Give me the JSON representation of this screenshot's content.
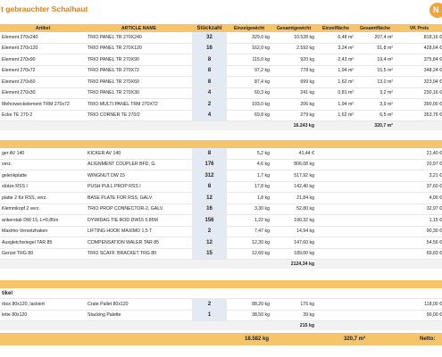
{
  "title": "t gebrauchter Schalhaut",
  "logo_text": "N",
  "header": {
    "article": "Artikel",
    "name": "ARTICLE NAME",
    "qty": "Stückzahl",
    "weight": "Einzelgewicht",
    "total_weight": "Gesamtgewicht",
    "area": "Einzelfläche",
    "total_area": "Gesamtfläche",
    "price": "VK Preis"
  },
  "section1": {
    "rows": [
      {
        "article": "Element 270x240",
        "name": "TRIO PANEL TR 270X240",
        "qty": "32",
        "weight": "329,0 kg",
        "total_weight": "10.528 kg",
        "area": "6,48 m²",
        "total_area": "207,4 m²",
        "price": "818,16 €"
      },
      {
        "article": "Element 270x120",
        "name": "TRIO PANEL TR 270X120",
        "qty": "16",
        "weight": "162,0 kg",
        "total_weight": "2.592 kg",
        "area": "3,24 m²",
        "total_area": "51,8 m²",
        "price": "428,64 €"
      },
      {
        "article": "Element 270x90",
        "name": "TRIO PANEL TR 270X90",
        "qty": "8",
        "weight": "115,0 kg",
        "total_weight": "920 kg",
        "area": "2,43 m²",
        "total_area": "19,4 m²",
        "price": "375,84 €"
      },
      {
        "article": "Element 270x72",
        "name": "TRIO PANEL TR 270X72",
        "qty": "8",
        "weight": "97,2 kg",
        "total_weight": "778 kg",
        "area": "1,94 m²",
        "total_area": "15,5 m²",
        "price": "348,24 €"
      },
      {
        "article": "Element 270x60",
        "name": "TRIO PANEL TR 270X60",
        "qty": "8",
        "weight": "87,4 kg",
        "total_weight": "699 kg",
        "area": "1,62 m²",
        "total_area": "13,0 m²",
        "price": "323,04 €"
      },
      {
        "article": "Element 270x30",
        "name": "TRIO PANEL TR 270X30",
        "qty": "4",
        "weight": "60,3 kg",
        "total_weight": "241 kg",
        "area": "0,81 m²",
        "total_area": "3,2 m²",
        "price": "230,16 €"
      },
      {
        "article": "Mehrzweckelement TRM 270x72",
        "name": "TRIO MULTI PANEL TRM 270X72",
        "qty": "2",
        "weight": "103,0 kg",
        "total_weight": "206 kg",
        "area": "1,94 m²",
        "total_area": "3,9 m²",
        "price": "390,00 €"
      },
      {
        "article": "Ecke TE 270-2",
        "name": "TRIO CORNER TE 270/2",
        "qty": "4",
        "weight": "69,8 kg",
        "total_weight": "279 kg",
        "area": "1,62 m²",
        "total_area": "6,5 m²",
        "price": "353,76 €"
      }
    ],
    "total_weight": "16.243 kg",
    "total_area": "320,7 m²"
  },
  "section2": {
    "rows": [
      {
        "article": "ger AV 140",
        "name": "KICKER AV 140",
        "qty": "8",
        "weight": "5,2 kg",
        "total_weight": "41,44 €",
        "price": "21,40 €"
      },
      {
        "article": "verz.",
        "name": "ALIGNMENT COUPLER BFD, G.",
        "qty": "176",
        "weight": "4,6 kg",
        "total_weight": "806,08 kg",
        "price": "20,97 €"
      },
      {
        "article": "gelenkplatte",
        "name": "WINGNUT DW 15",
        "qty": "312",
        "weight": "1,7 kg",
        "total_weight": "517,92 kg",
        "price": "3,21 €"
      },
      {
        "article": "stütze RSS I",
        "name": "PUSH PULL PROP RSS I",
        "qty": "8",
        "weight": "17,8 kg",
        "total_weight": "142,40 kg",
        "price": "37,60 €"
      },
      {
        "article": "platte 2 für RSS, verz.",
        "name": "BASE PLATE FOR RSS, GALV.",
        "qty": "12",
        "weight": "1,8 kg",
        "total_weight": "21,84 kg",
        "price": "4,00 €"
      },
      {
        "article": "Klemmkopf 2 verz.",
        "name": "TRIO PROP CONNECTOR-2, GALV.",
        "qty": "16",
        "weight": "3,30 kg",
        "total_weight": "52,80 kg",
        "price": "32,97 €"
      },
      {
        "article": "ankerstab DW 15, L=0,85m",
        "name": "DYWIDAG TIE ROD DW15 0.85M",
        "qty": "156",
        "weight": "1,22 kg",
        "total_weight": "190,32 kg",
        "price": "1,15 €"
      },
      {
        "article": "Maximo-Versetzhaken",
        "name": "LIFTING HOOK MAXIMO 1,5 T",
        "qty": "2",
        "weight": "7,47 kg",
        "total_weight": "14,94 kg",
        "price": "90,30 €"
      },
      {
        "article": "Ausgleichsriegel TAR 85",
        "name": "COMPENSATION WALER TAR 85",
        "qty": "12",
        "weight": "12,30 kg",
        "total_weight": "147,60 kg",
        "price": "54,56 €"
      },
      {
        "article": "Gerüst TRG 80",
        "name": "TRIO SCAFF. BRACKET TRG 80",
        "qty": "15",
        "weight": "12,60 kg",
        "total_weight": "189,00 kg",
        "price": "69,83 €"
      }
    ],
    "total_weight": "2124,34 kg"
  },
  "section3": {
    "label": "tikel",
    "rows": [
      {
        "article": "rbox 80x120, lackiert",
        "name": "Crate Pallet 80x120",
        "qty": "2",
        "weight": "88,20 kg",
        "total_weight": "176 kg",
        "price": "118,00 €"
      },
      {
        "article": "lette 80x120",
        "name": "Stacking Palette",
        "qty": "1",
        "weight": "38,50 kg",
        "total_weight": "39 kg",
        "price": "90,00 €"
      }
    ],
    "total_weight": "215 kg"
  },
  "grand_total": {
    "weight": "18.582 kg",
    "area": "320,7 m²",
    "label": "Netto:"
  },
  "colors": {
    "header": "#f6c46a",
    "title": "#e07e17",
    "qty_bg": "#e4eaf4"
  }
}
